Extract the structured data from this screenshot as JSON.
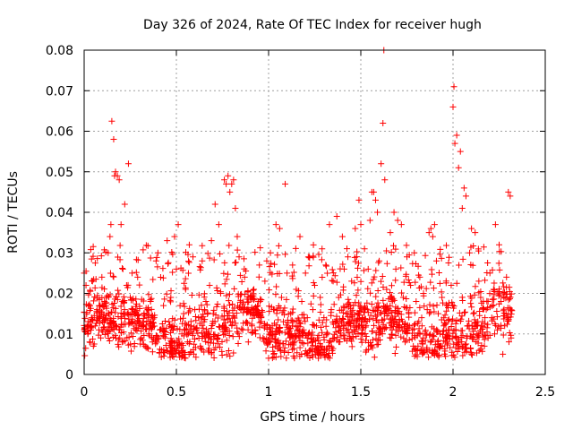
{
  "chart_data": {
    "type": "scatter",
    "title": "Day 326 of 2024, Rate Of TEC Index for receiver hugh",
    "xlabel": "GPS time / hours",
    "ylabel": "ROTI / TECUs",
    "xlim": [
      0,
      2.5
    ],
    "ylim": [
      0,
      0.08
    ],
    "x_ticks": [
      0,
      0.5,
      1,
      1.5,
      2,
      2.5
    ],
    "x_tick_labels": [
      "0",
      "0.5",
      "1",
      "1.5",
      "2",
      "2.5"
    ],
    "y_ticks": [
      0,
      0.01,
      0.02,
      0.03,
      0.04,
      0.05,
      0.06,
      0.07,
      0.08
    ],
    "y_tick_labels": [
      "0",
      "0.01",
      "0.02",
      "0.03",
      "0.04",
      "0.05",
      "0.06",
      "0.07",
      "0.08"
    ],
    "grid": true,
    "marker": "+",
    "series": [
      {
        "name": "ROTI",
        "color": "#ff0000",
        "points": [
          [
            0.0,
            0.025
          ],
          [
            0.01,
            0.022
          ],
          [
            0.02,
            0.01
          ],
          [
            0.03,
            0.008
          ],
          [
            0.04,
            0.014
          ],
          [
            0.05,
            0.007
          ],
          [
            0.06,
            0.012
          ],
          [
            0.07,
            0.016
          ],
          [
            0.08,
            0.011
          ],
          [
            0.09,
            0.009
          ],
          [
            0.1,
            0.013
          ],
          [
            0.11,
            0.018
          ],
          [
            0.12,
            0.019
          ],
          [
            0.13,
            0.03
          ],
          [
            0.14,
            0.034
          ],
          [
            0.145,
            0.037
          ],
          [
            0.15,
            0.0625
          ],
          [
            0.16,
            0.058
          ],
          [
            0.165,
            0.049
          ],
          [
            0.17,
            0.05
          ],
          [
            0.18,
            0.049
          ],
          [
            0.19,
            0.048
          ],
          [
            0.2,
            0.037
          ],
          [
            0.21,
            0.026
          ],
          [
            0.22,
            0.042
          ],
          [
            0.23,
            0.022
          ],
          [
            0.24,
            0.052
          ],
          [
            0.25,
            0.019
          ],
          [
            0.26,
            0.025
          ],
          [
            0.27,
            0.015
          ],
          [
            0.28,
            0.011
          ],
          [
            0.29,
            0.024
          ],
          [
            0.3,
            0.013
          ],
          [
            0.31,
            0.009
          ],
          [
            0.32,
            0.012
          ],
          [
            0.33,
            0.007
          ],
          [
            0.34,
            0.015
          ],
          [
            0.35,
            0.01
          ],
          [
            0.36,
            0.018
          ],
          [
            0.37,
            0.008
          ],
          [
            0.38,
            0.014
          ],
          [
            0.39,
            0.028
          ],
          [
            0.4,
            0.03
          ],
          [
            0.41,
            0.011
          ],
          [
            0.42,
            0.006
          ],
          [
            0.43,
            0.017
          ],
          [
            0.44,
            0.009
          ],
          [
            0.45,
            0.033
          ],
          [
            0.46,
            0.013
          ],
          [
            0.47,
            0.019
          ],
          [
            0.48,
            0.012
          ],
          [
            0.49,
            0.034
          ],
          [
            0.5,
            0.026
          ],
          [
            0.51,
            0.037
          ],
          [
            0.52,
            0.017
          ],
          [
            0.53,
            0.01
          ],
          [
            0.54,
            0.015
          ],
          [
            0.55,
            0.021
          ],
          [
            0.56,
            0.008
          ],
          [
            0.57,
            0.032
          ],
          [
            0.58,
            0.012
          ],
          [
            0.59,
            0.029
          ],
          [
            0.6,
            0.016
          ],
          [
            0.61,
            0.011
          ],
          [
            0.62,
            0.014
          ],
          [
            0.63,
            0.007
          ],
          [
            0.64,
            0.028
          ],
          [
            0.65,
            0.013
          ],
          [
            0.66,
            0.018
          ],
          [
            0.67,
            0.01
          ],
          [
            0.68,
            0.022
          ],
          [
            0.69,
            0.033
          ],
          [
            0.7,
            0.015
          ],
          [
            0.71,
            0.042
          ],
          [
            0.72,
            0.009
          ],
          [
            0.73,
            0.037
          ],
          [
            0.74,
            0.02
          ],
          [
            0.75,
            0.012
          ],
          [
            0.76,
            0.048
          ],
          [
            0.77,
            0.047
          ],
          [
            0.78,
            0.049
          ],
          [
            0.79,
            0.045
          ],
          [
            0.8,
            0.047
          ],
          [
            0.81,
            0.048
          ],
          [
            0.82,
            0.041
          ],
          [
            0.83,
            0.034
          ],
          [
            0.84,
            0.029
          ],
          [
            0.85,
            0.016
          ],
          [
            0.86,
            0.011
          ],
          [
            0.87,
            0.024
          ],
          [
            0.88,
            0.013
          ],
          [
            0.89,
            0.008
          ],
          [
            0.9,
            0.019
          ],
          [
            0.91,
            0.012
          ],
          [
            0.92,
            0.021
          ],
          [
            0.93,
            0.01
          ],
          [
            0.94,
            0.017
          ],
          [
            0.95,
            0.027
          ],
          [
            0.96,
            0.014
          ],
          [
            0.97,
            0.009
          ],
          [
            0.98,
            0.023
          ],
          [
            0.99,
            0.028
          ],
          [
            1.0,
            0.004
          ],
          [
            1.01,
            0.03
          ],
          [
            1.02,
            0.012
          ],
          [
            1.03,
            0.016
          ],
          [
            1.04,
            0.037
          ],
          [
            1.05,
            0.011
          ],
          [
            1.06,
            0.036
          ],
          [
            1.07,
            0.019
          ],
          [
            1.08,
            0.013
          ],
          [
            1.09,
            0.047
          ],
          [
            1.1,
            0.025
          ],
          [
            1.11,
            0.01
          ],
          [
            1.12,
            0.015
          ],
          [
            1.13,
            0.027
          ],
          [
            1.14,
            0.008
          ],
          [
            1.15,
            0.021
          ],
          [
            1.16,
            0.012
          ],
          [
            1.17,
            0.034
          ],
          [
            1.18,
            0.018
          ],
          [
            1.19,
            0.011
          ],
          [
            1.2,
            0.025
          ],
          [
            1.21,
            0.014
          ],
          [
            1.22,
            0.029
          ],
          [
            1.23,
            0.009
          ],
          [
            1.24,
            0.016
          ],
          [
            1.25,
            0.022
          ],
          [
            1.26,
            0.012
          ],
          [
            1.27,
            0.004
          ],
          [
            1.28,
            0.019
          ],
          [
            1.29,
            0.031
          ],
          [
            1.3,
            0.014
          ],
          [
            1.31,
            0.027
          ],
          [
            1.32,
            0.01
          ],
          [
            1.33,
            0.037
          ],
          [
            1.34,
            0.016
          ],
          [
            1.35,
            0.023
          ],
          [
            1.36,
            0.013
          ],
          [
            1.37,
            0.039
          ],
          [
            1.38,
            0.019
          ],
          [
            1.39,
            0.011
          ],
          [
            1.4,
            0.034
          ],
          [
            1.41,
            0.026
          ],
          [
            1.42,
            0.015
          ],
          [
            1.43,
            0.029
          ],
          [
            1.44,
            0.009
          ],
          [
            1.45,
            0.023
          ],
          [
            1.46,
            0.017
          ],
          [
            1.47,
            0.036
          ],
          [
            1.48,
            0.012
          ],
          [
            1.49,
            0.043
          ],
          [
            1.5,
            0.037
          ],
          [
            1.51,
            0.014
          ],
          [
            1.52,
            0.031
          ],
          [
            1.53,
            0.006
          ],
          [
            1.54,
            0.026
          ],
          [
            1.55,
            0.038
          ],
          [
            1.56,
            0.045
          ],
          [
            1.57,
            0.045
          ],
          [
            1.58,
            0.043
          ],
          [
            1.59,
            0.04
          ],
          [
            1.6,
            0.028
          ],
          [
            1.61,
            0.052
          ],
          [
            1.62,
            0.062
          ],
          [
            1.625,
            0.08
          ],
          [
            1.63,
            0.048
          ],
          [
            1.64,
            0.021
          ],
          [
            1.65,
            0.015
          ],
          [
            1.66,
            0.035
          ],
          [
            1.67,
            0.011
          ],
          [
            1.68,
            0.04
          ],
          [
            1.69,
            0.026
          ],
          [
            1.7,
            0.038
          ],
          [
            1.71,
            0.013
          ],
          [
            1.72,
            0.037
          ],
          [
            1.73,
            0.019
          ],
          [
            1.74,
            0.008
          ],
          [
            1.75,
            0.029
          ],
          [
            1.76,
            0.015
          ],
          [
            1.77,
            0.022
          ],
          [
            1.78,
            0.011
          ],
          [
            1.79,
            0.03
          ],
          [
            1.8,
            0.018
          ],
          [
            1.81,
            0.007
          ],
          [
            1.82,
            0.024
          ],
          [
            1.83,
            0.014
          ],
          [
            1.84,
            0.02
          ],
          [
            1.85,
            0.01
          ],
          [
            1.86,
            0.016
          ],
          [
            1.87,
            0.035
          ],
          [
            1.88,
            0.036
          ],
          [
            1.89,
            0.034
          ],
          [
            1.9,
            0.037
          ],
          [
            1.91,
            0.028
          ],
          [
            1.92,
            0.015
          ],
          [
            1.93,
            0.01
          ],
          [
            1.94,
            0.019
          ],
          [
            1.95,
            0.012
          ],
          [
            1.96,
            0.008
          ],
          [
            1.97,
            0.017
          ],
          [
            1.98,
            0.011
          ],
          [
            1.99,
            0.022
          ],
          [
            2.0,
            0.066
          ],
          [
            2.005,
            0.071
          ],
          [
            2.01,
            0.057
          ],
          [
            2.02,
            0.059
          ],
          [
            2.03,
            0.051
          ],
          [
            2.04,
            0.055
          ],
          [
            2.05,
            0.041
          ],
          [
            2.06,
            0.046
          ],
          [
            2.07,
            0.044
          ],
          [
            2.08,
            0.012
          ],
          [
            2.09,
            0.03
          ],
          [
            2.1,
            0.036
          ],
          [
            2.11,
            0.015
          ],
          [
            2.12,
            0.035
          ],
          [
            2.13,
            0.01
          ],
          [
            2.14,
            0.023
          ],
          [
            2.15,
            0.019
          ],
          [
            2.16,
            0.013
          ],
          [
            2.17,
            0.007
          ],
          [
            2.18,
            0.016
          ],
          [
            2.19,
            0.009
          ],
          [
            2.2,
            0.025
          ],
          [
            2.21,
            0.014
          ],
          [
            2.22,
            0.021
          ],
          [
            2.23,
            0.037
          ],
          [
            2.24,
            0.011
          ],
          [
            2.25,
            0.032
          ],
          [
            2.26,
            0.018
          ],
          [
            2.27,
            0.005
          ],
          [
            2.28,
            0.012
          ],
          [
            2.29,
            0.024
          ],
          [
            2.3,
            0.045
          ],
          [
            2.31,
            0.044
          ],
          [
            2.315,
            0.009
          ]
        ]
      }
    ],
    "dense_band": {
      "x_range": [
        0,
        2.32
      ],
      "y_range": [
        0.004,
        0.022
      ],
      "note": "dense cloud of points between 0.005 and 0.02"
    }
  },
  "colors": {
    "background": "#ffffff",
    "axis": "#000000",
    "grid": "#a0a0a0",
    "points": "#ff0000"
  }
}
